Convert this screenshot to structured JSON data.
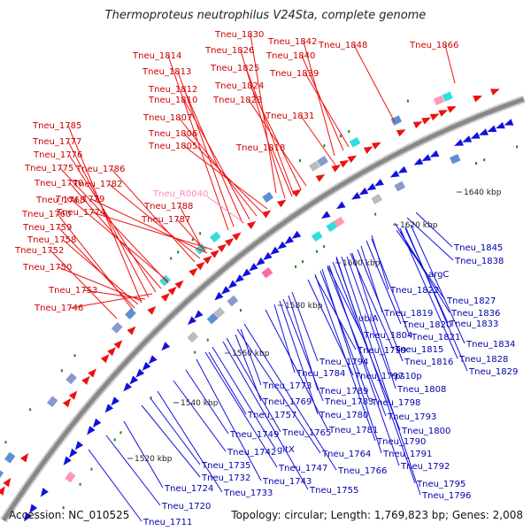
{
  "title": "Thermoproteus neutrophilus V24Sta, complete genome",
  "footer": {
    "accession": "Accession: NC_010525",
    "summary": "Topology: circular; Length: 1,769,823 bp; Genes: 2,008"
  },
  "colors": {
    "forward": "#ee1111",
    "reverse": "#1111dd",
    "rna": "#ff88bb",
    "backbone": "#888888"
  },
  "position_marks": [
    "1520 kbp",
    "1540 kbp",
    "1560 kbp",
    "1580 kbp",
    "1600 kbp",
    "1620 kbp",
    "1640 kbp"
  ],
  "forward_labels": [
    "Tneu_1830",
    "Tneu_1842",
    "Tneu_1848",
    "Tneu_1866",
    "Tneu_1826",
    "Tneu_1840",
    "Tneu_1814",
    "Tneu_1839",
    "Tneu_1813",
    "Tneu_1825",
    "Tneu_1824",
    "Tneu_1812",
    "Tneu_1823",
    "Tneu_1810",
    "Tneu_1831",
    "Tneu_1807",
    "Tneu_1785",
    "Tneu_1806",
    "Tneu_1818",
    "Tneu_1777",
    "Tneu_1805",
    "Tneu_1776",
    "Tneu_1775",
    "Tneu_1786",
    "Tneu_1782",
    "Tneu_1770",
    "Tneu_1779",
    "Tneu_1768",
    "Tneu_1774",
    "Tneu_1788",
    "Tneu_1760",
    "Tneu_1787",
    "Tneu_1759",
    "Tneu_1758",
    "Tneu_1752",
    "Tneu_1750",
    "Tneu_1753",
    "Tneu_1746"
  ],
  "rna_labels": [
    "Tneu_R0040"
  ],
  "reverse_labels": [
    "Tneu_1845",
    "Tneu_1838",
    "argC",
    "Tneu_1822",
    "Tneu_1827",
    "Tneu_1819",
    "Tneu_1836",
    "Tneu_1820",
    "Tneu_1833",
    "ubiA",
    "Tneu_1821",
    "Tneu_1804",
    "Tneu_1834",
    "Tneu_1815",
    "Tneu_1799",
    "Tneu_1828",
    "Tneu_1816",
    "Tneu_1794",
    "Tneu_1829",
    "rps10p",
    "Tneu_1797",
    "Tneu_1784",
    "Tneu_1808",
    "Tneu_1773",
    "Tneu_1789",
    "Tneu_1769",
    "Tneu_1783",
    "Tneu_1798",
    "Tneu_1757",
    "Tneu_1780",
    "Tneu_1793",
    "Tneu_1781",
    "Tneu_1800",
    "Tneu_1749",
    "Tneu_1765",
    "Tneu_1790",
    "Tneu_1742",
    "gltX",
    "Tneu_1764",
    "Tneu_1791",
    "Tneu_1735",
    "Tneu_1747",
    "Tneu_1766",
    "Tneu_1792",
    "Tneu_1732",
    "Tneu_1743",
    "Tneu_1795",
    "Tneu_1724",
    "Tneu_1733",
    "Tneu_1755",
    "Tneu_1796",
    "Tneu_1720",
    "Tneu_1711"
  ]
}
